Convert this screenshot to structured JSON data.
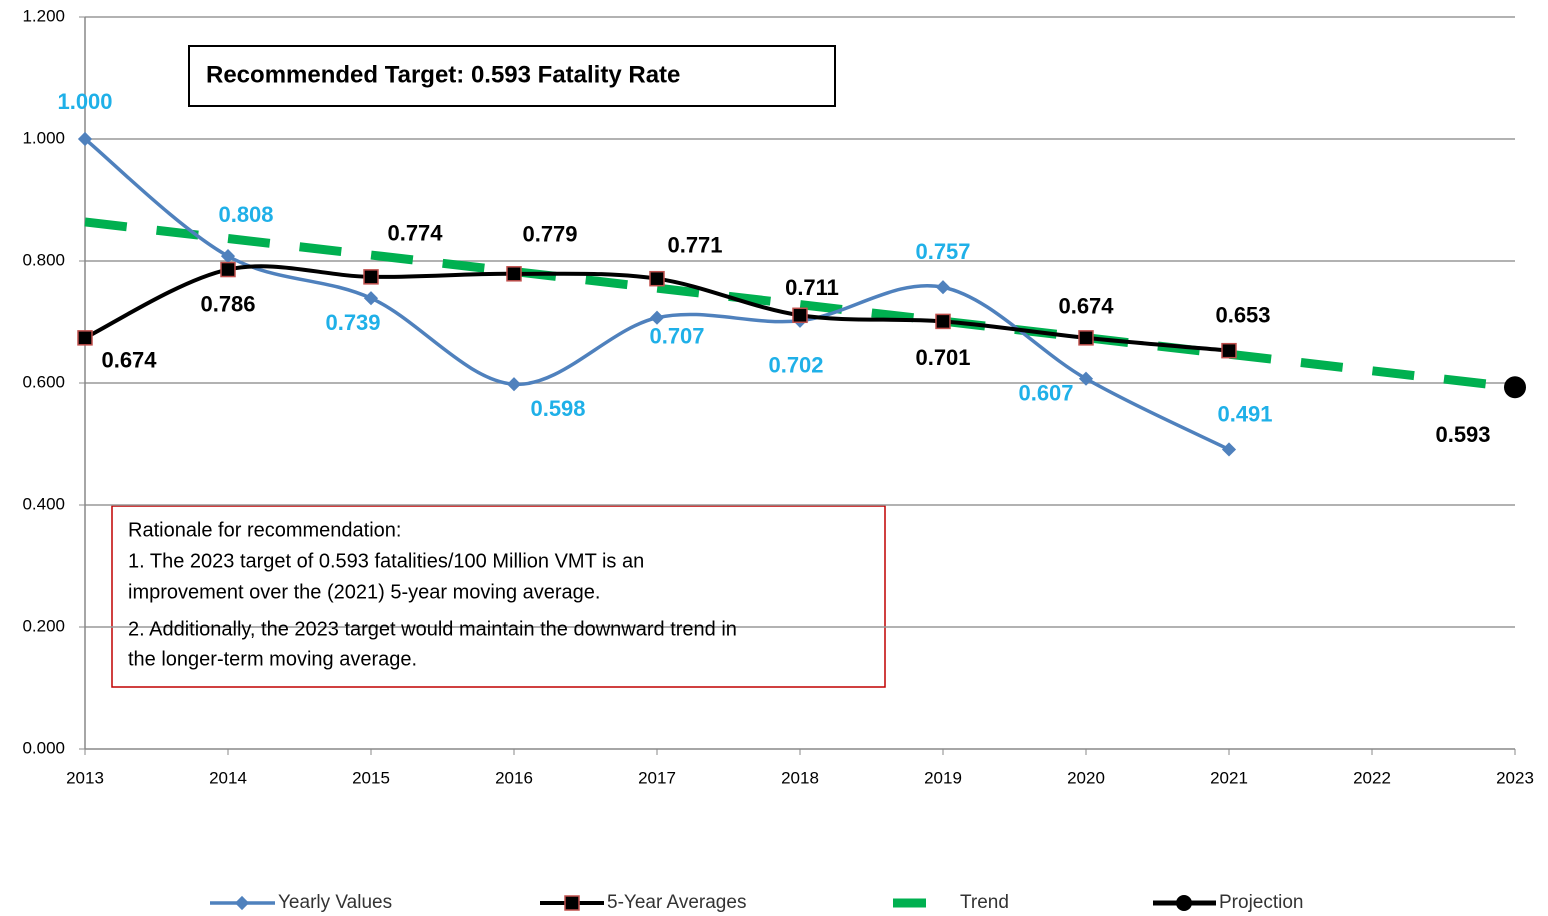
{
  "chart_data": {
    "type": "line",
    "x": [
      2013,
      2014,
      2015,
      2016,
      2017,
      2018,
      2019,
      2020,
      2021
    ],
    "series": [
      {
        "name": "Yearly Values",
        "color": "#4f81bd",
        "label_color": "#1fb0e8",
        "values": [
          1.0,
          0.808,
          0.739,
          0.598,
          0.707,
          0.702,
          0.757,
          0.607,
          0.491
        ],
        "value_labels": [
          "1.000",
          "0.808",
          "0.739",
          "0.598",
          "0.707",
          "0.702",
          "0.757",
          "0.607",
          "0.491"
        ]
      },
      {
        "name": "5-Year Averages",
        "color": "#000000",
        "marker_edge": "#c0504d",
        "label_color": "#000000",
        "values": [
          0.674,
          0.786,
          0.774,
          0.779,
          0.771,
          0.711,
          0.701,
          0.674,
          0.653
        ],
        "value_labels": [
          "0.674",
          "0.786",
          "0.774",
          "0.779",
          "0.771",
          "0.711",
          "0.701",
          "0.674",
          "0.653"
        ]
      }
    ],
    "trend": {
      "name": "Trend",
      "color": "#00b050",
      "x": [
        2013,
        2023
      ],
      "values": [
        0.864,
        0.593
      ]
    },
    "projection": {
      "name": "Projection",
      "color": "#000000",
      "x": [
        2023
      ],
      "values": [
        0.593
      ],
      "value_labels": [
        "0.593"
      ]
    },
    "xlim": [
      2013,
      2023
    ],
    "xticks": [
      2013,
      2014,
      2015,
      2016,
      2017,
      2018,
      2019,
      2020,
      2021,
      2022,
      2023
    ],
    "ylim": [
      0,
      1.2
    ],
    "yticks": [
      {
        "value": 0,
        "label": "0.000"
      },
      {
        "value": 0.2,
        "label": "0.200"
      },
      {
        "value": 0.4,
        "label": "0.400"
      },
      {
        "value": 0.6,
        "label": "0.600"
      },
      {
        "value": 0.8,
        "label": "0.800"
      },
      {
        "value": 1.0,
        "label": "1.000"
      },
      {
        "value": 1.2,
        "label": "1.200"
      }
    ],
    "grid": true,
    "legend": "bottom",
    "annotations": {
      "target": "Recommended Target:  0.593 Fatality Rate",
      "rationale": [
        "Rationale for recommendation:",
        "1.  The 2023 target of 0.593 fatalities/100 Million VMT is an",
        "improvement over the (2021) 5-year moving average.",
        "2. Additionally, the 2023 target would maintain the downward trend in",
        "the longer-term moving average."
      ]
    }
  }
}
